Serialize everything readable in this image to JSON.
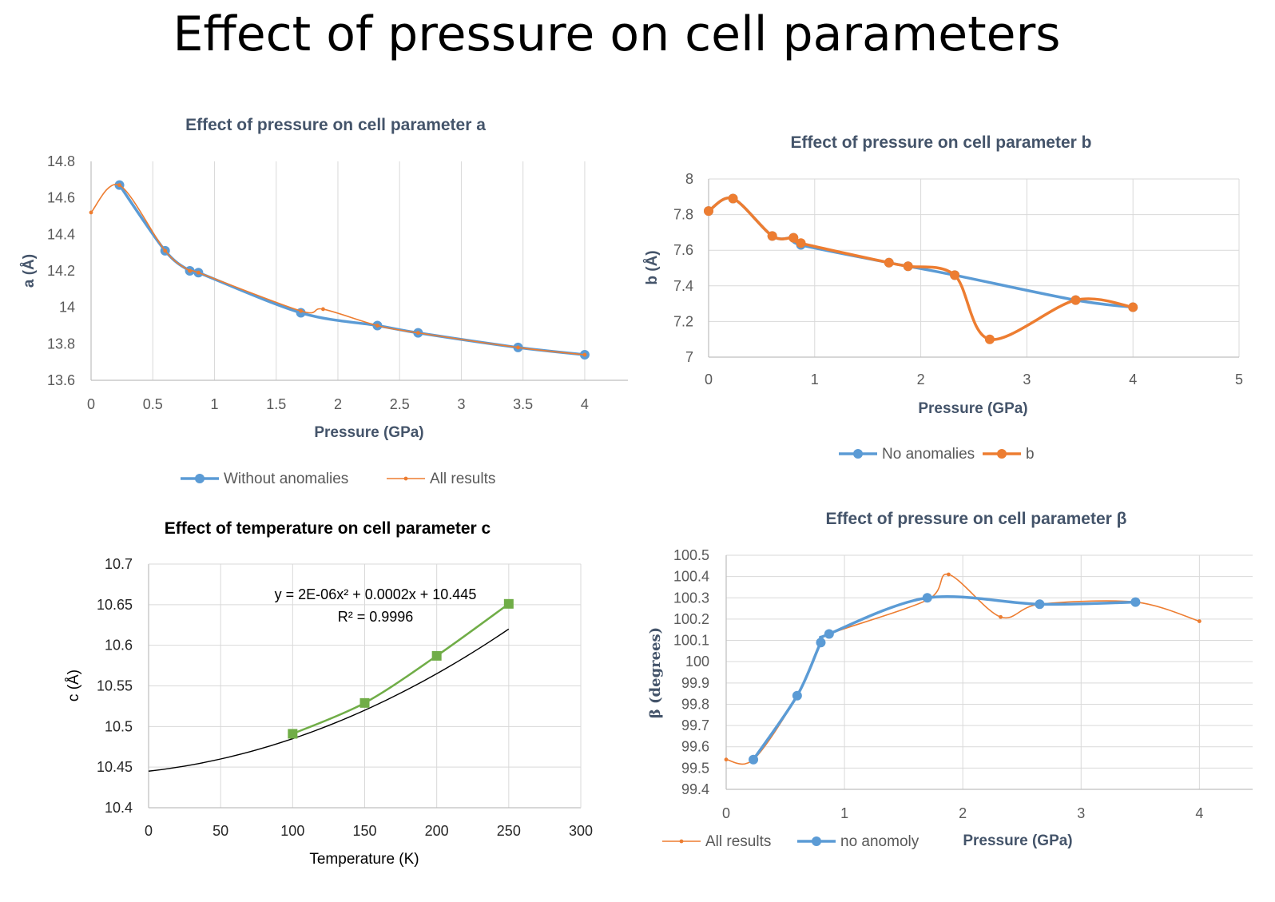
{
  "page": {
    "title": "Effect of pressure on cell parameters"
  },
  "colors": {
    "blue": "#5b9bd5",
    "orange": "#ed7d31",
    "green": "#70ad47",
    "grid": "#d9d9d9",
    "title": "#44546a"
  },
  "chart_data": [
    {
      "id": "a",
      "type": "line",
      "title": "Effect of pressure on cell parameter a",
      "xlabel": "Pressure (GPa)",
      "ylabel": "a (Å)",
      "xlim": [
        0,
        4.35
      ],
      "ylim": [
        13.6,
        14.8
      ],
      "xticks": [
        "0",
        "0.5",
        "1",
        "1.5",
        "2",
        "2.5",
        "3",
        "3.5",
        "4"
      ],
      "yticks": [
        "13.6",
        "13.8",
        "14",
        "14.2",
        "14.4",
        "14.6",
        "14.8"
      ],
      "grid": "vertical",
      "legend": "bottom",
      "series": [
        {
          "name": "Without anomalies",
          "color": "#5b9bd5",
          "marker": "circle",
          "x": [
            0.23,
            0.6,
            0.8,
            0.87,
            1.7,
            2.32,
            2.65,
            3.46,
            4.0
          ],
          "y": [
            14.67,
            14.31,
            14.2,
            14.19,
            13.97,
            13.9,
            13.86,
            13.78,
            13.74
          ]
        },
        {
          "name": "All results",
          "color": "#ed7d31",
          "marker": "dot",
          "x": [
            0.0,
            0.23,
            0.6,
            0.8,
            0.87,
            1.7,
            1.88,
            2.32,
            2.65,
            3.46,
            4.0
          ],
          "y": [
            14.52,
            14.67,
            14.31,
            14.2,
            14.19,
            13.98,
            13.99,
            13.9,
            13.86,
            13.78,
            13.74
          ]
        }
      ]
    },
    {
      "id": "b",
      "type": "line",
      "title": "Effect of pressure on cell parameter b",
      "xlabel": "Pressure (GPa)",
      "ylabel": "b (Å)",
      "xlim": [
        0,
        5
      ],
      "ylim": [
        7,
        8
      ],
      "xticks": [
        "0",
        "1",
        "2",
        "3",
        "4",
        "5"
      ],
      "yticks": [
        "7",
        "7.2",
        "7.4",
        "7.6",
        "7.8",
        "8"
      ],
      "grid": "both",
      "legend": "bottom",
      "series": [
        {
          "name": "No anomalies",
          "color": "#5b9bd5",
          "marker": "circle",
          "x": [
            0.0,
            0.23,
            0.6,
            0.8,
            0.87,
            1.7,
            1.88,
            2.32,
            3.46,
            4.0
          ],
          "y": [
            7.82,
            7.89,
            7.68,
            7.67,
            7.63,
            7.53,
            7.51,
            7.46,
            7.32,
            7.28
          ]
        },
        {
          "name": "b",
          "color": "#ed7d31",
          "marker": "circle",
          "x": [
            0.0,
            0.23,
            0.6,
            0.8,
            0.87,
            1.7,
            1.88,
            2.32,
            2.65,
            3.46,
            4.0
          ],
          "y": [
            7.82,
            7.89,
            7.68,
            7.67,
            7.64,
            7.53,
            7.51,
            7.46,
            7.1,
            7.32,
            7.28
          ]
        }
      ]
    },
    {
      "id": "c",
      "type": "scatter",
      "title": "Effect of temperature on  cell parameter c",
      "xlabel": "Temperature (K)",
      "ylabel": "c (Å)",
      "xlim": [
        0,
        300
      ],
      "ylim": [
        10.4,
        10.7
      ],
      "xticks": [
        "0",
        "50",
        "100",
        "150",
        "200",
        "250",
        "300"
      ],
      "yticks": [
        "10.4",
        "10.45",
        "10.5",
        "10.55",
        "10.6",
        "10.65",
        "10.7"
      ],
      "grid": "both",
      "equation": "y = 2E-06x² + 0.0002x + 10.445",
      "r_squared": "R² = 0.9996",
      "trendline": {
        "a": 2e-06,
        "b": 0.0002,
        "c": 10.445,
        "color": "#000000"
      },
      "series": [
        {
          "color": "#70ad47",
          "marker": "square",
          "x": [
            100,
            150,
            200,
            250
          ],
          "y": [
            10.491,
            10.529,
            10.587,
            10.651
          ]
        }
      ]
    },
    {
      "id": "beta",
      "type": "line",
      "title": "Effect of pressure on cell parameter β",
      "xlabel": "Pressure (GPa)",
      "ylabel": "β (degrees)",
      "xlim": [
        0,
        4.45
      ],
      "ylim": [
        99.4,
        100.5
      ],
      "xticks": [
        "0",
        "1",
        "2",
        "3",
        "4"
      ],
      "yticks": [
        "99.4",
        "99.5",
        "99.6",
        "99.7",
        "99.8",
        "99.9",
        "100",
        "100.1",
        "100.2",
        "100.3",
        "100.4",
        "100.5"
      ],
      "grid": "both",
      "legend": "bottom-left",
      "series": [
        {
          "name": "All results",
          "color": "#ed7d31",
          "marker": "dot",
          "x": [
            0.0,
            0.23,
            0.6,
            0.8,
            0.87,
            1.7,
            1.88,
            2.32,
            2.65,
            3.46,
            4.0
          ],
          "y": [
            99.54,
            99.54,
            99.84,
            100.09,
            100.13,
            100.29,
            100.41,
            100.21,
            100.27,
            100.28,
            100.19
          ]
        },
        {
          "name": "no anomoly",
          "color": "#5b9bd5",
          "marker": "circle",
          "x": [
            0.23,
            0.6,
            0.8,
            0.87,
            1.7,
            2.65,
            3.46
          ],
          "y": [
            99.54,
            99.84,
            100.09,
            100.13,
            100.3,
            100.27,
            100.28
          ]
        }
      ]
    }
  ]
}
